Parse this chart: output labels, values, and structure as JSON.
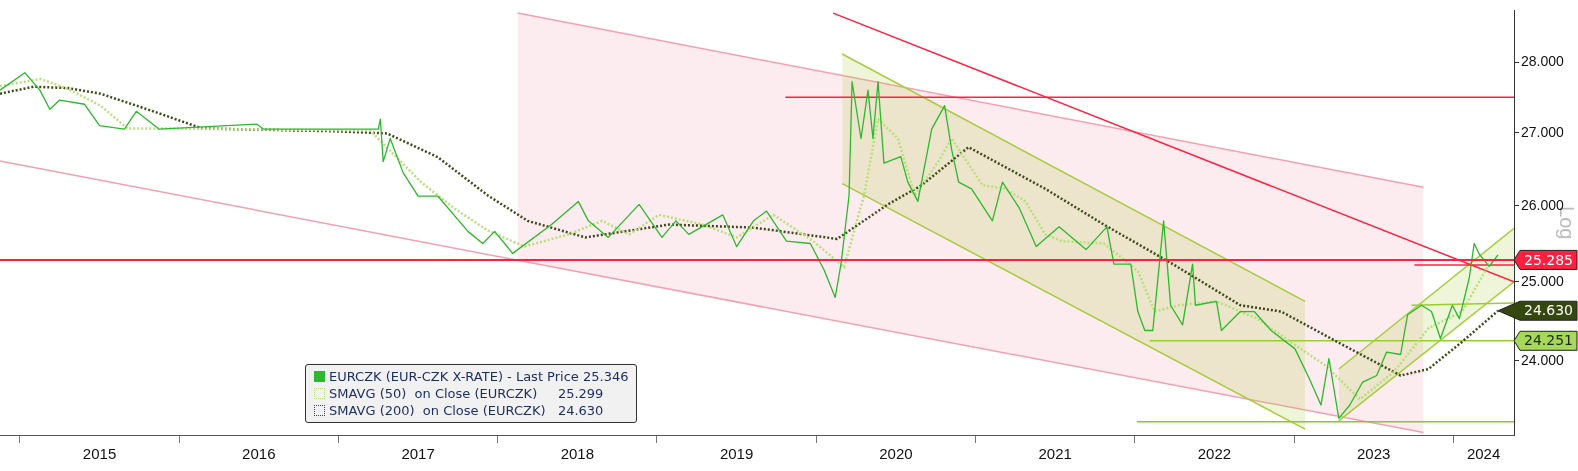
{
  "chart_data": {
    "type": "line",
    "ylabel": "Log",
    "log": true,
    "legend": "bottom",
    "marker": "none",
    "xlim": [
      2014.875,
      2024.381
    ],
    "xticks": [
      {
        "value": 2015,
        "label": null
      },
      {
        "value": 2015.5,
        "label": "2015"
      },
      {
        "value": 2016,
        "label": null
      },
      {
        "value": 2016.5,
        "label": "2016"
      },
      {
        "value": 2017,
        "label": null
      },
      {
        "value": 2017.5,
        "label": "2017"
      },
      {
        "value": 2018,
        "label": null
      },
      {
        "value": 2018.5,
        "label": "2018"
      },
      {
        "value": 2019,
        "label": null
      },
      {
        "value": 2019.5,
        "label": "2019"
      },
      {
        "value": 2020,
        "label": null
      },
      {
        "value": 2020.5,
        "label": "2020"
      },
      {
        "value": 2021,
        "label": null
      },
      {
        "value": 2021.5,
        "label": "2021"
      },
      {
        "value": 2022,
        "label": null
      },
      {
        "value": 2022.5,
        "label": "2022"
      },
      {
        "value": 2023,
        "label": null
      },
      {
        "value": 2023.5,
        "label": "2023"
      },
      {
        "value": 2024,
        "label": null
      },
      {
        "value": 2024.19,
        "label": "2024"
      }
    ],
    "ylim": [
      23.1,
      28.76
    ],
    "yticks": [
      {
        "value": 24,
        "label": "24.000"
      },
      {
        "value": 25,
        "label": "25.000"
      },
      {
        "value": 26,
        "label": "26.000"
      },
      {
        "value": 27,
        "label": "27.000"
      },
      {
        "value": 28,
        "label": "28.000"
      }
    ],
    "ref_lines": [
      {
        "axis": "y",
        "value": 25.285,
        "label": "25.285",
        "color": "#ff2040"
      }
    ],
    "annotations": [
      {
        "text": "24.630",
        "x": 2024.281,
        "y": 24.63
      },
      {
        "text": "24.251",
        "x": 2024.381,
        "y": 24.251
      }
    ],
    "series": [
      {
        "name": "EURCZK (EUR-CZK X-RATE) - Last Price 25.346",
        "color": "#2db82d",
        "line_style": "solid",
        "x": [
          2014.875,
          2015.031,
          2015.125,
          2015.188,
          2015.25,
          2015.406,
          2015.5,
          2015.656,
          2015.731,
          2015.875,
          2016.488,
          2016.531,
          2017.25,
          2017.263,
          2017.281,
          2017.325,
          2017.406,
          2017.5,
          2017.625,
          2017.813,
          2017.906,
          2017.981,
          2018.094,
          2018.338,
          2018.506,
          2018.569,
          2018.694,
          2018.888,
          2019.031,
          2019.119,
          2019.2,
          2019.413,
          2019.5,
          2019.606,
          2019.688,
          2019.813,
          2019.963,
          2020.05,
          2020.119,
          2020.156,
          2020.206,
          2020.225,
          2020.281,
          2020.325,
          2020.356,
          2020.388,
          2020.425,
          2020.531,
          2020.575,
          2020.638,
          2020.725,
          2020.806,
          2020.85,
          2020.894,
          2020.975,
          2021.106,
          2021.169,
          2021.275,
          2021.381,
          2021.525,
          2021.694,
          2021.825,
          2021.869,
          2021.975,
          2022.019,
          2022.063,
          2022.113,
          2022.181,
          2022.225,
          2022.3,
          2022.363,
          2022.381,
          2022.513,
          2022.544,
          2022.663,
          2022.75,
          2022.856,
          2023.006,
          2023.094,
          2023.169,
          2023.219,
          2023.281,
          2023.35,
          2023.431,
          2023.519,
          2023.581,
          2023.669,
          2023.713,
          2023.8,
          2023.863,
          2023.919,
          2023.994,
          2024.038,
          2024.1,
          2024.131,
          2024.163,
          2024.225,
          2024.281
        ],
        "values": [
          27.6,
          27.85,
          27.6,
          27.33,
          27.46,
          27.4,
          27.1,
          27.05,
          27.3,
          27.05,
          27.12,
          27.05,
          27.05,
          27.19,
          26.6,
          26.92,
          26.45,
          26.13,
          26.13,
          25.66,
          25.5,
          25.66,
          25.37,
          25.75,
          26.06,
          25.8,
          25.58,
          26.02,
          25.58,
          25.8,
          25.62,
          25.88,
          25.46,
          25.8,
          25.93,
          25.53,
          25.5,
          25.15,
          24.8,
          25.24,
          26.14,
          27.72,
          26.92,
          27.6,
          26.92,
          27.72,
          26.58,
          26.67,
          26.32,
          26.06,
          27.05,
          27.38,
          26.77,
          26.32,
          26.23,
          25.8,
          26.32,
          25.97,
          25.46,
          25.72,
          25.42,
          25.72,
          25.23,
          25.23,
          24.62,
          24.38,
          24.38,
          25.8,
          24.7,
          24.45,
          25.23,
          24.7,
          24.75,
          24.38,
          24.62,
          24.62,
          24.38,
          24.15,
          23.79,
          23.46,
          24.03,
          23.3,
          23.46,
          23.74,
          23.82,
          24.11,
          24.08,
          24.58,
          24.7,
          24.62,
          24.28,
          24.7,
          24.53,
          25.05,
          25.5,
          25.36,
          25.2,
          25.35
        ]
      },
      {
        "name": "SMAVG (50)  on Close (EURCZK)     25.299",
        "color": "#b8e07a",
        "line_style": "dotted",
        "x": [
          2014.875,
          2015.131,
          2015.3,
          2015.506,
          2015.675,
          2015.931,
          2017.2,
          2017.519,
          2017.725,
          2017.938,
          2018.169,
          2018.444,
          2018.656,
          2018.825,
          2019.013,
          2019.288,
          2019.5,
          2019.731,
          2019.981,
          2020.175,
          2020.3,
          2020.388,
          2020.513,
          2020.619,
          2020.769,
          2020.85,
          2021.044,
          2021.188,
          2021.313,
          2021.438,
          2021.544,
          2021.806,
          2022.019,
          2022.125,
          2022.275,
          2022.513,
          2022.769,
          2023.006,
          2023.2,
          2023.413,
          2023.625,
          2023.844,
          2024.056,
          2024.225,
          2024.281
        ],
        "values": [
          27.66,
          27.76,
          27.62,
          27.38,
          27.06,
          27.06,
          27.03,
          26.32,
          25.97,
          25.67,
          25.46,
          25.62,
          25.8,
          25.62,
          25.88,
          25.75,
          25.58,
          25.88,
          25.53,
          25.19,
          26.14,
          27.19,
          26.92,
          26.14,
          26.61,
          26.92,
          26.28,
          26.23,
          26.06,
          25.62,
          25.53,
          25.5,
          25.14,
          24.62,
          24.7,
          24.75,
          24.53,
          24.2,
          23.94,
          23.53,
          23.86,
          24.41,
          24.62,
          25.23,
          25.3
        ]
      },
      {
        "name": "SMAVG (200)  on Close (EURCZK)   24.630",
        "color": "#3d4a1a",
        "line_style": "dotted",
        "x": [
          2014.875,
          2015.088,
          2015.3,
          2015.506,
          2015.825,
          2016.144,
          2016.988,
          2017.306,
          2017.625,
          2017.938,
          2018.188,
          2018.55,
          2019.075,
          2019.606,
          2020.131,
          2020.45,
          2020.663,
          2020.956,
          2021.438,
          2021.806,
          2022.231,
          2022.663,
          2022.919,
          2023.306,
          2023.669,
          2023.844,
          2024.056,
          2024.281
        ],
        "values": [
          27.55,
          27.65,
          27.63,
          27.55,
          27.31,
          27.06,
          27.02,
          26.99,
          26.66,
          26.14,
          25.8,
          25.58,
          25.75,
          25.71,
          25.56,
          26.02,
          26.28,
          26.8,
          26.23,
          25.75,
          25.24,
          24.7,
          24.62,
          24.2,
          23.82,
          23.9,
          24.24,
          24.63
        ]
      },
      {
        "color": "#ff2040",
        "line_style": "solid",
        "x": [
          2020.106,
          2024.381
        ],
        "values": [
          28.72,
          25.0
        ]
      },
      {
        "color": "#ff2040",
        "line_style": "solid",
        "x": [
          2019.806,
          2024.381
        ],
        "values": [
          27.5,
          27.5
        ]
      },
      {
        "color": "#ff2040",
        "line_style": "solid",
        "x": [
          2023.756,
          2024.381
        ],
        "values": [
          25.22,
          25.22
        ]
      },
      {
        "color": "#9acd32",
        "line_style": "solid",
        "x": [
          2022.094,
          2024.381
        ],
        "values": [
          24.25,
          24.25
        ]
      },
      {
        "color": "#7cd11a",
        "line_style": "solid",
        "x": [
          2022.013,
          2024.381
        ],
        "values": [
          23.26,
          23.26
        ]
      },
      {
        "color": "#9acd32",
        "line_style": "solid",
        "x": [
          2023.738,
          2024.381
        ],
        "values": [
          24.7,
          24.73
        ]
      },
      {
        "color": "#a8cc40",
        "line_style": "solid",
        "x": [
          2023.281,
          2024.381
        ],
        "values": [
          23.9,
          25.7
        ],
        "upper": [
          23.9,
          25.7
        ],
        "lower": [
          23.27,
          25.0
        ]
      },
      {
        "color": "#a8cc40",
        "line_style": "solid",
        "x": [
          2023.281,
          2024.381
        ],
        "values": [
          23.27,
          25.0
        ]
      },
      {
        "color": "#a8cc40",
        "line_style": "solid",
        "x": [
          2020.163,
          2023.069
        ],
        "values": [
          28.12,
          24.75
        ],
        "upper": [
          28.12,
          24.75
        ],
        "lower": [
          26.3,
          23.17
        ]
      },
      {
        "color": "#a8cc40",
        "line_style": "solid",
        "x": [
          2020.163,
          2023.069
        ],
        "values": [
          26.3,
          23.17
        ]
      },
      {
        "color": "#f4a0b0",
        "line_style": "solid",
        "x": [
          2014.875,
          2018.125,
          2023.813
        ],
        "values": [
          26.61,
          25.28,
          23.13
        ]
      },
      {
        "color": "#f4a0b0",
        "line_style": "solid",
        "x": [
          2018.125,
          2023.813
        ],
        "values": [
          28.72,
          26.25
        ],
        "upper": [
          28.72,
          26.25
        ],
        "lower": [
          25.28,
          23.13
        ]
      }
    ]
  }
}
